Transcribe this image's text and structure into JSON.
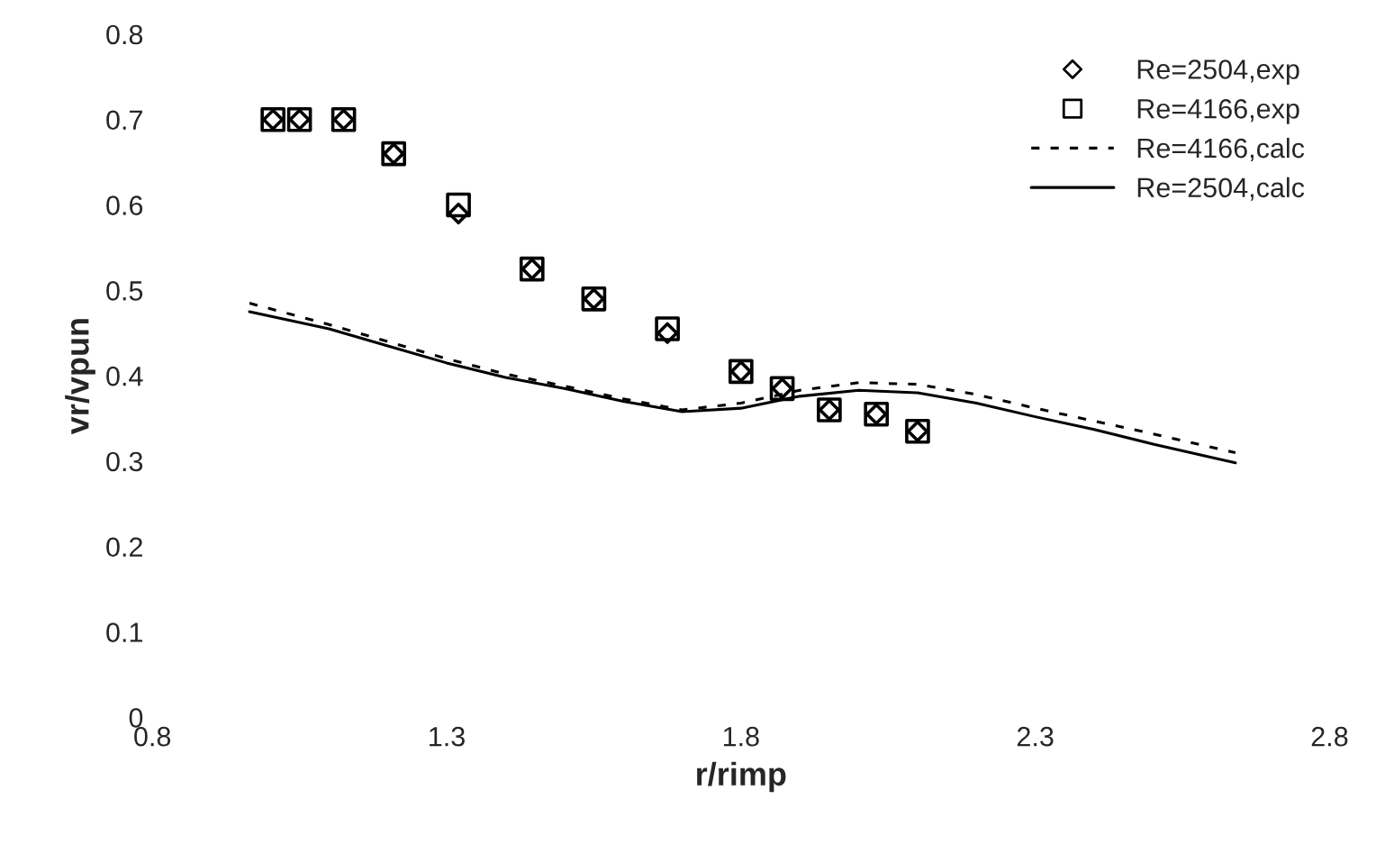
{
  "chart_data": {
    "type": "scatter",
    "xlabel": "r/rimp",
    "ylabel": "vr/vpun",
    "xlim": [
      0.8,
      2.8
    ],
    "xticks": [
      0.8,
      1.3,
      1.8,
      2.3,
      2.8
    ],
    "ylim": [
      0,
      0.8
    ],
    "yticks": [
      0,
      0.1,
      0.2,
      0.3,
      0.4,
      0.5,
      0.6,
      0.7,
      0.8
    ],
    "grid": false,
    "legend": "top right",
    "series": [
      {
        "name": "Re=2504,exp",
        "marker": "diamond",
        "color": "#000000",
        "x": [
          1.005,
          1.05,
          1.125,
          1.21,
          1.32,
          1.445,
          1.55,
          1.675,
          1.8,
          1.87,
          1.95,
          2.03,
          2.1
        ],
        "values": [
          0.7,
          0.7,
          0.7,
          0.66,
          0.59,
          0.525,
          0.49,
          0.45,
          0.405,
          0.385,
          0.36,
          0.355,
          0.335
        ]
      },
      {
        "name": "Re=4166,exp",
        "marker": "square",
        "color": "#000000",
        "x": [
          1.005,
          1.05,
          1.125,
          1.21,
          1.32,
          1.445,
          1.55,
          1.675,
          1.8,
          1.87,
          1.95,
          2.03,
          2.1
        ],
        "values": [
          0.7,
          0.7,
          0.7,
          0.66,
          0.6,
          0.525,
          0.49,
          0.455,
          0.405,
          0.385,
          0.36,
          0.355,
          0.335
        ]
      },
      {
        "name": "Re=4166,calc",
        "type": "line",
        "line_style": "dashed",
        "color": "#000000",
        "x": [
          0.965,
          1.1,
          1.2,
          1.3,
          1.4,
          1.5,
          1.6,
          1.7,
          1.8,
          1.9,
          2.0,
          2.1,
          2.2,
          2.3,
          2.4,
          2.5,
          2.64
        ],
        "values": [
          0.485,
          0.46,
          0.44,
          0.42,
          0.402,
          0.388,
          0.373,
          0.36,
          0.368,
          0.383,
          0.392,
          0.39,
          0.378,
          0.362,
          0.347,
          0.332,
          0.31
        ]
      },
      {
        "name": "Re=2504,calc",
        "type": "line",
        "line_style": "solid",
        "color": "#000000",
        "x": [
          0.965,
          1.1,
          1.2,
          1.3,
          1.4,
          1.5,
          1.6,
          1.7,
          1.8,
          1.9,
          2.0,
          2.1,
          2.2,
          2.3,
          2.4,
          2.5,
          2.64
        ],
        "values": [
          0.475,
          0.455,
          0.435,
          0.415,
          0.398,
          0.385,
          0.37,
          0.358,
          0.362,
          0.376,
          0.383,
          0.38,
          0.368,
          0.352,
          0.337,
          0.32,
          0.298
        ]
      }
    ]
  }
}
